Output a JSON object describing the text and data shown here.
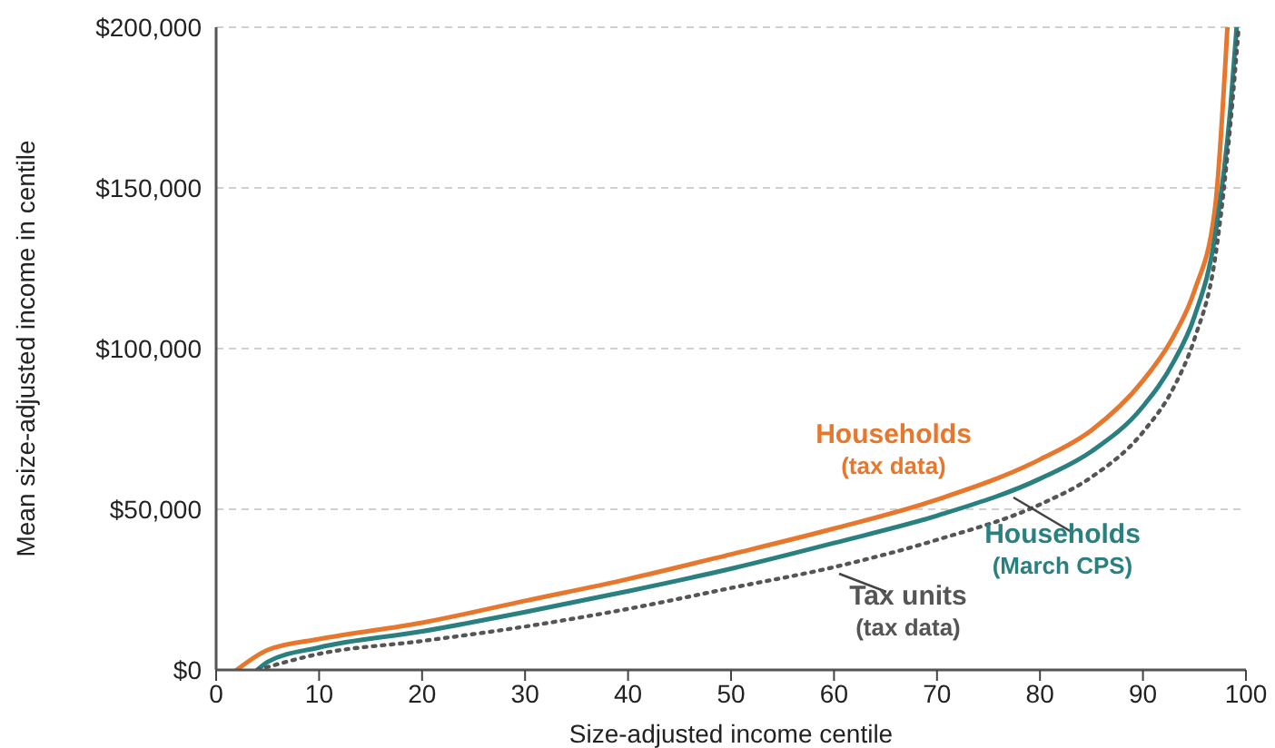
{
  "chart_data": {
    "type": "line",
    "xlabel": "Size-adjusted income centile",
    "ylabel": "Mean size-adjusted income in centile",
    "xlim": [
      0,
      100
    ],
    "xticks": [
      0,
      10,
      20,
      30,
      40,
      50,
      60,
      70,
      80,
      90,
      100
    ],
    "ylim": [
      0,
      200000
    ],
    "yticks": [
      {
        "value": 0,
        "label": "$0"
      },
      {
        "value": 50000,
        "label": "$50,000"
      },
      {
        "value": 100000,
        "label": "$100,000"
      },
      {
        "value": 150000,
        "label": "$150,000"
      },
      {
        "value": 200000,
        "label": "$200,000"
      }
    ],
    "grid": "y",
    "legend": false,
    "marker": "none",
    "series": [
      {
        "name": "Households (tax data)",
        "color": "#e8772e",
        "line_style": "solid",
        "x": [
          2,
          5,
          10,
          20,
          30,
          40,
          50,
          60,
          70,
          80,
          85,
          90,
          93,
          95,
          97,
          98.2
        ],
        "values": [
          0,
          6200,
          9600,
          14700,
          21500,
          28300,
          36000,
          44000,
          53000,
          65500,
          74600,
          90000,
          104000,
          118000,
          143700,
          200000
        ]
      },
      {
        "name": "Households (March CPS)",
        "color": "#2a7f7f",
        "line_style": "solid",
        "x": [
          4,
          5,
          10,
          20,
          30,
          40,
          50,
          60,
          70,
          80,
          85,
          90,
          93,
          95,
          97,
          98.5,
          99.1
        ],
        "values": [
          0,
          2500,
          7000,
          12000,
          18000,
          24500,
          31500,
          39500,
          48000,
          59500,
          68000,
          82000,
          96000,
          110000,
          135000,
          175000,
          200000
        ]
      },
      {
        "name": "Tax units (tax data)",
        "color": "#555555",
        "line_style": "dotted",
        "x": [
          4,
          10,
          20,
          30,
          40,
          50,
          60,
          70,
          80,
          85,
          90,
          93,
          95,
          97,
          98.5,
          99.3
        ],
        "values": [
          0,
          5000,
          9000,
          13500,
          19000,
          25500,
          32000,
          40500,
          51500,
          60000,
          74000,
          88000,
          103000,
          128000,
          170000,
          200000
        ]
      }
    ]
  }
}
